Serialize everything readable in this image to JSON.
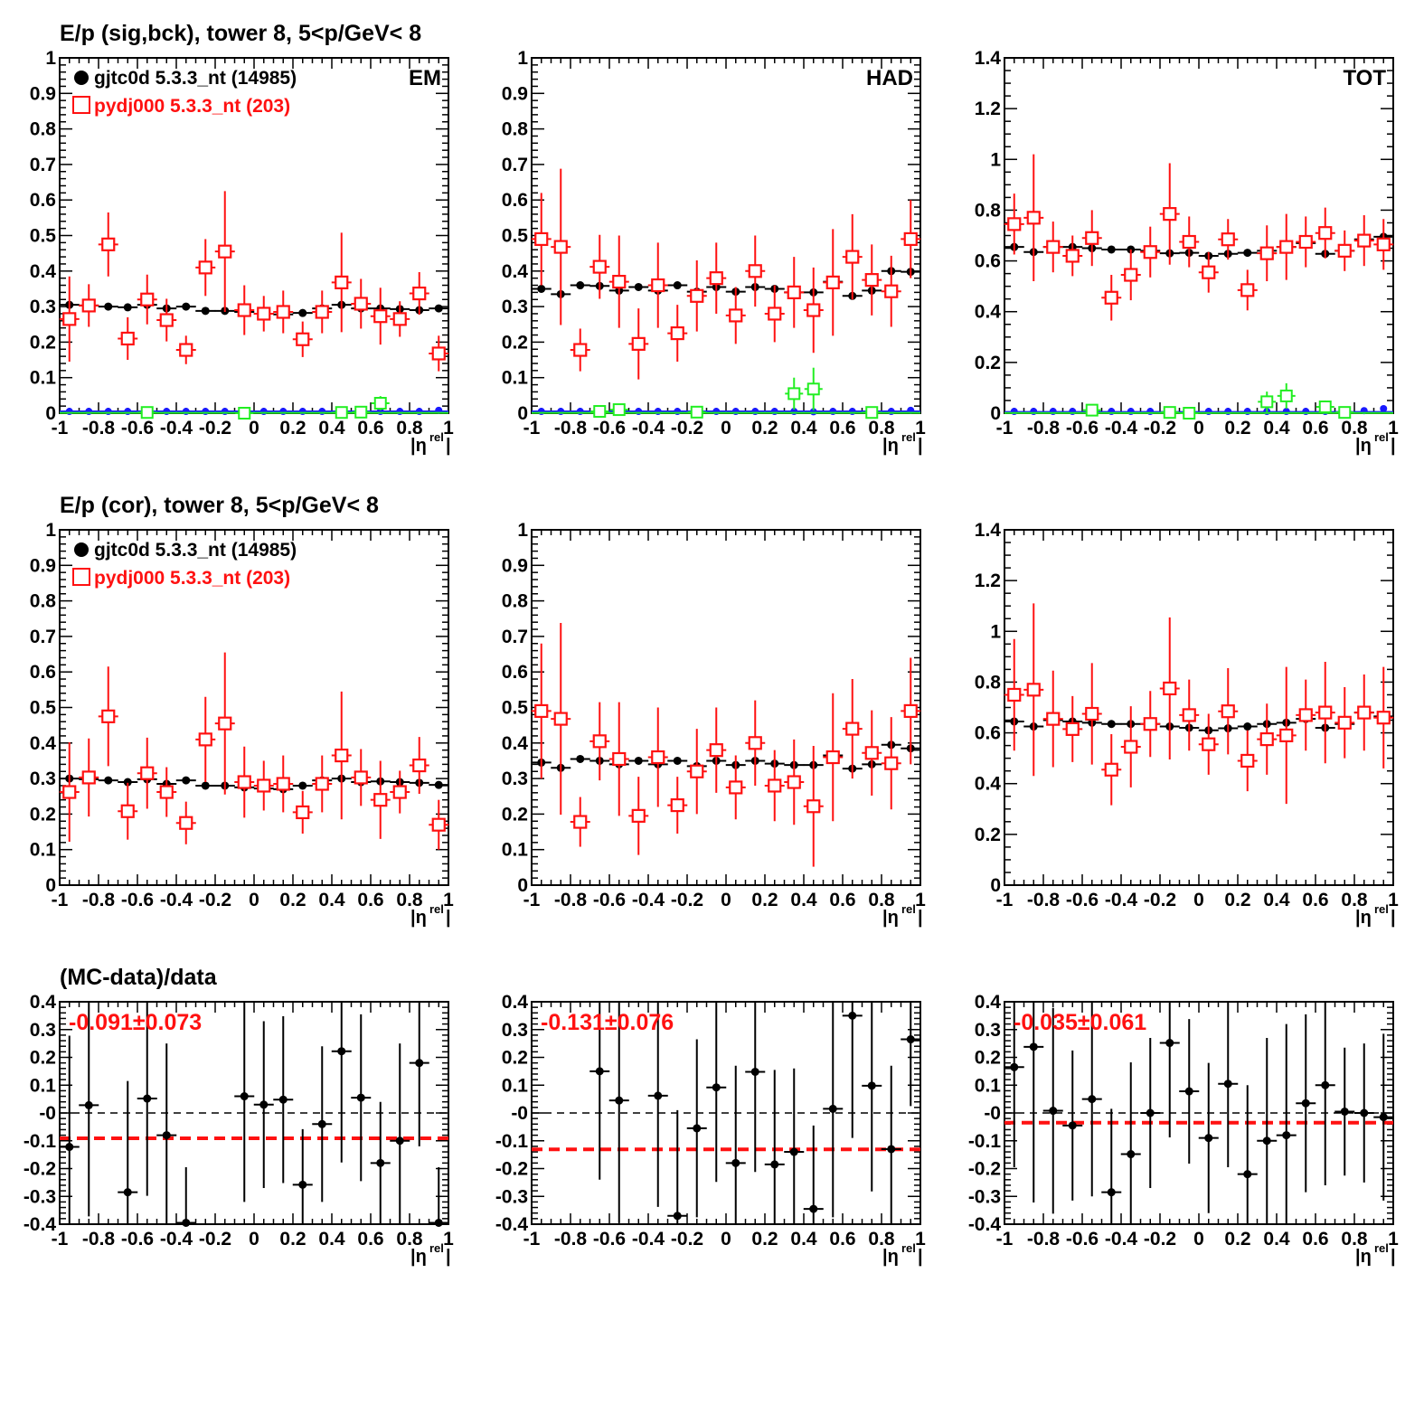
{
  "titles": {
    "row1": "E/p (sig,bck), tower 8,  5<p/GeV< 8",
    "row2": "E/p (cor), tower 8,  5<p/GeV< 8",
    "row3": "(MC-data)/data"
  },
  "legend": {
    "data_label": "gjtc0d 5.3.3_nt (14985)",
    "mc_label": "pydj000 5.3.3_nt (203)"
  },
  "panel_tags": [
    "EM",
    "HAD",
    "TOT"
  ],
  "xaxis": {
    "label_main": "|η",
    "label_sup": "rel",
    "label_end": "|",
    "range": [
      -1,
      1
    ],
    "tick_labels": [
      "-1",
      "-0.8",
      "-0.6",
      "-0.4",
      "-0.2",
      "0",
      "0.2",
      "0.4",
      "0.6",
      "0.8",
      "1"
    ]
  },
  "colors": {
    "data": "#000000",
    "mc": "#ff1111",
    "blue": "#1a1aff",
    "green": "#22ee22",
    "fit": "#ff1111"
  },
  "chart_data": [
    {
      "type": "scatter",
      "panel": "EM sig,bck",
      "ylim": [
        0,
        1
      ],
      "x": [
        -0.95,
        -0.85,
        -0.75,
        -0.65,
        -0.55,
        -0.45,
        -0.35,
        -0.25,
        -0.15,
        -0.05,
        0.05,
        0.15,
        0.25,
        0.35,
        0.45,
        0.55,
        0.65,
        0.75,
        0.85,
        0.95
      ],
      "series": [
        {
          "name": "gjtc0d 5.3.3_nt (14985)",
          "values": [
            0.305,
            0.303,
            0.3,
            0.298,
            0.305,
            0.295,
            0.3,
            0.288,
            0.288,
            0.285,
            0.28,
            0.278,
            0.282,
            0.295,
            0.305,
            0.295,
            0.295,
            0.293,
            0.29,
            0.295
          ]
        },
        {
          "name": "pydj000 5.3.3_nt (203)",
          "values": [
            0.265,
            0.303,
            0.475,
            0.21,
            0.32,
            0.262,
            0.178,
            0.41,
            0.455,
            0.29,
            0.28,
            0.285,
            0.208,
            0.285,
            0.368,
            0.308,
            0.273,
            0.265,
            0.337,
            0.168
          ],
          "errors": [
            0.12,
            0.06,
            0.09,
            0.06,
            0.07,
            0.06,
            0.04,
            0.08,
            0.17,
            0.07,
            0.05,
            0.06,
            0.05,
            0.06,
            0.14,
            0.07,
            0.08,
            0.05,
            0.06,
            0.05
          ]
        },
        {
          "values": [
            0.005,
            0.005,
            0.005,
            0.005,
            0.005,
            0.005,
            0.005,
            0.005,
            0.005,
            0.005,
            0.005,
            0.005,
            0.005,
            0.005,
            0.005,
            0.005,
            0.005,
            0.005,
            0.005,
            0.008
          ]
        },
        {
          "x": [
            -0.55,
            -0.05,
            0.45,
            0.55,
            0.65
          ],
          "values": [
            0.002,
            0.0,
            0.002,
            0.003,
            0.028
          ],
          "errors": [
            0.01,
            0.01,
            0.01,
            0.01,
            0.02
          ]
        }
      ]
    },
    {
      "type": "scatter",
      "panel": "HAD sig,bck",
      "ylim": [
        0,
        1
      ],
      "x": [
        -0.95,
        -0.85,
        -0.75,
        -0.65,
        -0.55,
        -0.45,
        -0.35,
        -0.25,
        -0.15,
        -0.05,
        0.05,
        0.15,
        0.25,
        0.35,
        0.45,
        0.55,
        0.65,
        0.75,
        0.85,
        0.95
      ],
      "series": [
        {
          "name": "gjtc0d 5.3.3_nt (14985)",
          "values": [
            0.35,
            0.335,
            0.36,
            0.358,
            0.345,
            0.355,
            0.345,
            0.36,
            0.342,
            0.355,
            0.342,
            0.355,
            0.35,
            0.34,
            0.34,
            0.37,
            0.33,
            0.345,
            0.4,
            0.398
          ]
        },
        {
          "name": "pydj000 5.3.3_nt (203)",
          "values": [
            0.49,
            0.468,
            0.178,
            0.412,
            0.37,
            0.195,
            0.36,
            0.225,
            0.33,
            0.38,
            0.275,
            0.4,
            0.28,
            0.34,
            0.29,
            0.368,
            0.44,
            0.375,
            0.343,
            0.49
          ],
          "errors": [
            0.13,
            0.22,
            0.06,
            0.09,
            0.13,
            0.1,
            0.12,
            0.08,
            0.1,
            0.1,
            0.08,
            0.1,
            0.08,
            0.1,
            0.12,
            0.15,
            0.12,
            0.1,
            0.1,
            0.11
          ]
        },
        {
          "values": [
            0.005,
            0.005,
            0.005,
            0.005,
            0.005,
            0.005,
            0.005,
            0.005,
            0.005,
            0.005,
            0.005,
            0.005,
            0.005,
            0.005,
            0.004,
            0.005,
            0.005,
            0.005,
            0.005,
            0.008
          ]
        },
        {
          "x": [
            -0.65,
            -0.55,
            -0.15,
            0.35,
            0.45,
            0.75
          ],
          "values": [
            0.005,
            0.01,
            0.003,
            0.055,
            0.068,
            0.002
          ],
          "errors": [
            0.01,
            0.01,
            0.01,
            0.045,
            0.06,
            0.01
          ]
        }
      ]
    },
    {
      "type": "scatter",
      "panel": "TOT sig,bck",
      "ylim": [
        0,
        1.4
      ],
      "x": [
        -0.95,
        -0.85,
        -0.75,
        -0.65,
        -0.55,
        -0.45,
        -0.35,
        -0.25,
        -0.15,
        -0.05,
        0.05,
        0.15,
        0.25,
        0.35,
        0.45,
        0.55,
        0.65,
        0.75,
        0.85,
        0.95
      ],
      "series": [
        {
          "name": "gjtc0d 5.3.3_nt (14985)",
          "values": [
            0.655,
            0.635,
            0.655,
            0.655,
            0.65,
            0.645,
            0.645,
            0.64,
            0.63,
            0.632,
            0.62,
            0.628,
            0.632,
            0.64,
            0.655,
            0.67,
            0.628,
            0.64,
            0.685,
            0.695
          ]
        },
        {
          "name": "pydj000 5.3.3_nt (203)",
          "values": [
            0.745,
            0.77,
            0.655,
            0.62,
            0.69,
            0.455,
            0.545,
            0.635,
            0.785,
            0.675,
            0.555,
            0.685,
            0.485,
            0.63,
            0.655,
            0.675,
            0.71,
            0.64,
            0.68,
            0.665
          ],
          "errors": [
            0.12,
            0.25,
            0.1,
            0.08,
            0.11,
            0.09,
            0.1,
            0.1,
            0.2,
            0.1,
            0.08,
            0.08,
            0.08,
            0.11,
            0.13,
            0.1,
            0.1,
            0.08,
            0.1,
            0.1
          ]
        },
        {
          "values": [
            0.007,
            0.007,
            0.007,
            0.007,
            0.007,
            0.007,
            0.007,
            0.007,
            0.007,
            0.007,
            0.007,
            0.007,
            0.007,
            0.007,
            0.007,
            0.007,
            0.007,
            0.007,
            0.01,
            0.018
          ]
        },
        {
          "x": [
            -0.55,
            -0.15,
            -0.05,
            0.35,
            0.45,
            0.65,
            0.75
          ],
          "values": [
            0.012,
            0.003,
            0.0,
            0.045,
            0.068,
            0.025,
            0.003
          ],
          "errors": [
            0.01,
            0.01,
            0.01,
            0.04,
            0.05,
            0.025,
            0.01
          ]
        }
      ]
    },
    {
      "type": "scatter",
      "panel": "EM cor",
      "ylim": [
        0,
        1
      ],
      "x": [
        -0.95,
        -0.85,
        -0.75,
        -0.65,
        -0.55,
        -0.45,
        -0.35,
        -0.25,
        -0.15,
        -0.05,
        0.05,
        0.15,
        0.25,
        0.35,
        0.45,
        0.55,
        0.65,
        0.75,
        0.85,
        0.95
      ],
      "series": [
        {
          "name": "gjtc0d 5.3.3_nt (14985)",
          "values": [
            0.3,
            0.298,
            0.295,
            0.29,
            0.298,
            0.285,
            0.295,
            0.28,
            0.28,
            0.275,
            0.272,
            0.27,
            0.28,
            0.295,
            0.3,
            0.29,
            0.292,
            0.29,
            0.288,
            0.282
          ]
        },
        {
          "name": "pydj000 5.3.3_nt (203)",
          "values": [
            0.262,
            0.303,
            0.475,
            0.208,
            0.315,
            0.262,
            0.175,
            0.41,
            0.455,
            0.29,
            0.28,
            0.285,
            0.205,
            0.285,
            0.365,
            0.303,
            0.24,
            0.262,
            0.337,
            0.17
          ],
          "errors": [
            0.14,
            0.11,
            0.14,
            0.08,
            0.1,
            0.07,
            0.06,
            0.12,
            0.2,
            0.1,
            0.07,
            0.08,
            0.06,
            0.08,
            0.18,
            0.08,
            0.11,
            0.06,
            0.08,
            0.07
          ]
        }
      ]
    },
    {
      "type": "scatter",
      "panel": "HAD cor",
      "ylim": [
        0,
        1
      ],
      "x": [
        -0.95,
        -0.85,
        -0.75,
        -0.65,
        -0.55,
        -0.45,
        -0.35,
        -0.25,
        -0.15,
        -0.05,
        0.05,
        0.15,
        0.25,
        0.35,
        0.45,
        0.55,
        0.65,
        0.75,
        0.85,
        0.95
      ],
      "series": [
        {
          "name": "gjtc0d 5.3.3_nt (14985)",
          "values": [
            0.345,
            0.33,
            0.355,
            0.35,
            0.34,
            0.35,
            0.34,
            0.35,
            0.335,
            0.35,
            0.338,
            0.35,
            0.342,
            0.338,
            0.338,
            0.365,
            0.328,
            0.34,
            0.395,
            0.385
          ]
        },
        {
          "name": "pydj000 5.3.3_nt (203)",
          "values": [
            0.49,
            0.468,
            0.178,
            0.405,
            0.355,
            0.195,
            0.36,
            0.225,
            0.32,
            0.38,
            0.275,
            0.4,
            0.28,
            0.29,
            0.222,
            0.36,
            0.44,
            0.372,
            0.343,
            0.49
          ],
          "errors": [
            0.19,
            0.27,
            0.07,
            0.11,
            0.16,
            0.11,
            0.14,
            0.08,
            0.12,
            0.12,
            0.09,
            0.12,
            0.1,
            0.12,
            0.17,
            0.18,
            0.14,
            0.12,
            0.13,
            0.15
          ]
        }
      ]
    },
    {
      "type": "scatter",
      "panel": "TOT cor",
      "ylim": [
        0,
        1.4
      ],
      "x": [
        -0.95,
        -0.85,
        -0.75,
        -0.65,
        -0.55,
        -0.45,
        -0.35,
        -0.25,
        -0.15,
        -0.05,
        0.05,
        0.15,
        0.25,
        0.35,
        0.45,
        0.55,
        0.65,
        0.75,
        0.85,
        0.95
      ],
      "series": [
        {
          "name": "gjtc0d 5.3.3_nt (14985)",
          "values": [
            0.645,
            0.625,
            0.65,
            0.645,
            0.64,
            0.635,
            0.635,
            0.635,
            0.625,
            0.62,
            0.61,
            0.618,
            0.625,
            0.635,
            0.64,
            0.655,
            0.62,
            0.635,
            0.68,
            0.665
          ]
        },
        {
          "name": "pydj000 5.3.3_nt (203)",
          "values": [
            0.75,
            0.77,
            0.655,
            0.615,
            0.675,
            0.455,
            0.545,
            0.635,
            0.775,
            0.67,
            0.555,
            0.685,
            0.49,
            0.575,
            0.59,
            0.67,
            0.68,
            0.64,
            0.68,
            0.66
          ],
          "errors": [
            0.22,
            0.34,
            0.19,
            0.13,
            0.2,
            0.14,
            0.16,
            0.13,
            0.28,
            0.14,
            0.12,
            0.17,
            0.12,
            0.14,
            0.27,
            0.14,
            0.2,
            0.14,
            0.15,
            0.2
          ]
        }
      ]
    },
    {
      "type": "scatter",
      "panel": "EM ratio",
      "ylim": [
        -0.4,
        0.4
      ],
      "fit_value": -0.091,
      "fit_label": "-0.091±0.073",
      "x": [
        -0.95,
        -0.85,
        -0.65,
        -0.55,
        -0.45,
        -0.35,
        -0.05,
        0.05,
        0.15,
        0.25,
        0.35,
        0.45,
        0.55,
        0.65,
        0.75,
        0.85,
        0.95
      ],
      "series": [
        {
          "values": [
            -0.122,
            0.028,
            -0.285,
            0.052,
            -0.08,
            -0.395,
            0.06,
            0.03,
            0.048,
            -0.258,
            -0.04,
            0.222,
            0.055,
            -0.18,
            -0.1,
            0.18,
            -0.395
          ],
          "errors": [
            0.4,
            0.4,
            0.4,
            0.35,
            0.33,
            0.2,
            0.38,
            0.3,
            0.3,
            0.2,
            0.28,
            0.4,
            0.3,
            0.22,
            0.35,
            0.3,
            0.2
          ]
        }
      ]
    },
    {
      "type": "scatter",
      "panel": "HAD ratio",
      "ylim": [
        -0.4,
        0.4
      ],
      "fit_value": -0.131,
      "fit_label": "-0.131±0.076",
      "x": [
        -0.65,
        -0.55,
        -0.35,
        -0.25,
        -0.15,
        -0.05,
        0.05,
        0.15,
        0.25,
        0.35,
        0.45,
        0.55,
        0.65,
        0.75,
        0.85,
        0.95
      ],
      "series": [
        {
          "values": [
            0.15,
            0.045,
            0.062,
            -0.37,
            -0.055,
            0.092,
            -0.18,
            0.148,
            -0.185,
            -0.14,
            -0.345,
            0.015,
            0.35,
            0.098,
            -0.13,
            0.265
          ],
          "errors": [
            0.39,
            0.44,
            0.4,
            0.38,
            0.32,
            0.34,
            0.35,
            0.36,
            0.34,
            0.3,
            0.3,
            0.39,
            0.44,
            0.38,
            0.3,
            0.24
          ]
        }
      ]
    },
    {
      "type": "scatter",
      "panel": "TOT ratio",
      "ylim": [
        -0.4,
        0.4
      ],
      "fit_value": -0.035,
      "fit_label": "-0.035±0.061",
      "x": [
        -0.95,
        -0.85,
        -0.75,
        -0.65,
        -0.55,
        -0.45,
        -0.35,
        -0.25,
        -0.15,
        -0.05,
        0.05,
        0.15,
        0.25,
        0.35,
        0.45,
        0.55,
        0.65,
        0.75,
        0.85,
        0.95
      ],
      "series": [
        {
          "values": [
            0.165,
            0.238,
            0.008,
            -0.045,
            0.05,
            -0.285,
            -0.148,
            0.0,
            0.252,
            0.078,
            -0.09,
            0.105,
            -0.22,
            -0.1,
            -0.08,
            0.035,
            0.1,
            0.005,
            0.0,
            -0.015
          ],
          "errors": [
            0.36,
            0.56,
            0.37,
            0.27,
            0.35,
            0.3,
            0.33,
            0.27,
            0.34,
            0.26,
            0.27,
            0.3,
            0.32,
            0.37,
            0.4,
            0.32,
            0.36,
            0.23,
            0.25,
            0.3
          ]
        }
      ]
    }
  ]
}
